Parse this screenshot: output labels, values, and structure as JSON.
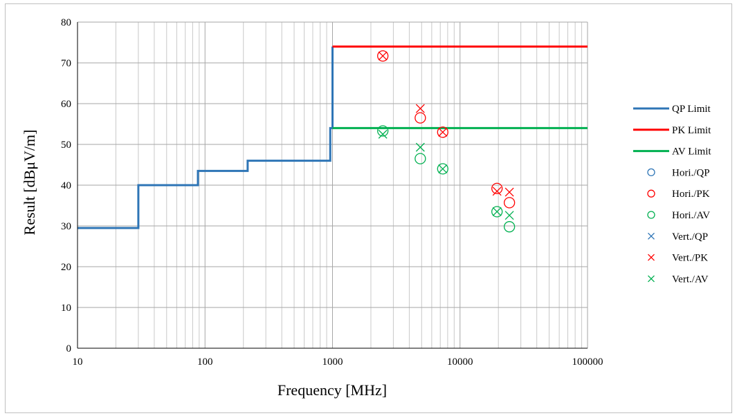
{
  "chart_data": {
    "type": "line",
    "xlabel": "Frequency [MHz]",
    "ylabel": "Result [dBμV/m]",
    "xscale": "log",
    "xlim": [
      10,
      100000
    ],
    "ylim": [
      0,
      80
    ],
    "grid": true,
    "legend_position": "right",
    "x_tick_labels": [
      "10",
      "100",
      "1000",
      "10000",
      "100000"
    ],
    "y_tick_labels": [
      "0",
      "10",
      "20",
      "30",
      "40",
      "50",
      "60",
      "70",
      "80"
    ],
    "series": [
      {
        "name": "QP Limit",
        "kind": "line",
        "color": "#2e75b6",
        "points": [
          [
            10,
            29.5
          ],
          [
            30,
            29.5
          ],
          [
            30,
            40
          ],
          [
            88,
            40
          ],
          [
            88,
            43.5
          ],
          [
            216,
            43.5
          ],
          [
            216,
            46
          ],
          [
            960,
            46
          ],
          [
            960,
            54
          ],
          [
            1000,
            54
          ],
          [
            1000,
            74
          ]
        ]
      },
      {
        "name": "PK Limit",
        "kind": "line",
        "color": "#ff0000",
        "points": [
          [
            1000,
            74
          ],
          [
            100000,
            74
          ]
        ]
      },
      {
        "name": "AV Limit",
        "kind": "line",
        "color": "#00b050",
        "points": [
          [
            1000,
            54
          ],
          [
            100000,
            54
          ]
        ]
      },
      {
        "name": "Hori./QP",
        "kind": "circle",
        "color": "#2e75b6",
        "points": []
      },
      {
        "name": "Hori./PK",
        "kind": "circle",
        "color": "#ff0000",
        "points": [
          [
            2480,
            71.7
          ],
          [
            4880,
            56.5
          ],
          [
            7320,
            53
          ],
          [
            19500,
            39.2
          ],
          [
            24400,
            35.7
          ]
        ]
      },
      {
        "name": "Hori./AV",
        "kind": "circle",
        "color": "#00b050",
        "points": [
          [
            2480,
            53.3
          ],
          [
            4880,
            46.5
          ],
          [
            7320,
            44
          ],
          [
            19500,
            33.5
          ],
          [
            24400,
            29.8
          ]
        ]
      },
      {
        "name": "Vert./QP",
        "kind": "cross",
        "color": "#2e75b6",
        "points": []
      },
      {
        "name": "Vert./PK",
        "kind": "cross",
        "color": "#ff0000",
        "points": [
          [
            2480,
            71.7
          ],
          [
            4880,
            58.8
          ],
          [
            7320,
            53
          ],
          [
            19500,
            38.5
          ],
          [
            24400,
            38.3
          ]
        ]
      },
      {
        "name": "Vert./AV",
        "kind": "cross",
        "color": "#00b050",
        "points": [
          [
            2480,
            52.5
          ],
          [
            4880,
            49.3
          ],
          [
            7320,
            44
          ],
          [
            19500,
            33.5
          ],
          [
            24400,
            32.6
          ]
        ]
      }
    ]
  }
}
